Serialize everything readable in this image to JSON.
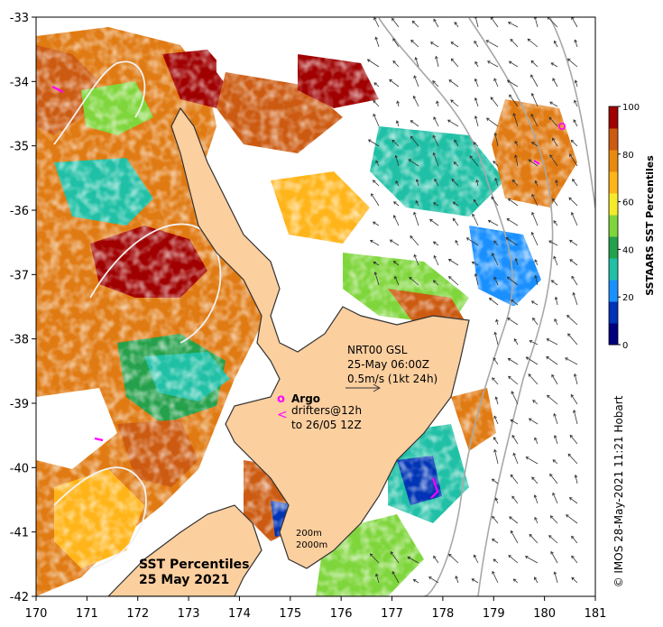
{
  "map": {
    "lon_ticks": [
      "170",
      "171",
      "172",
      "173",
      "174",
      "175",
      "176",
      "177",
      "178",
      "179",
      "180",
      "181"
    ],
    "lat_ticks": [
      "-33",
      "-34",
      "-35",
      "-36",
      "-37",
      "-38",
      "-39",
      "-40",
      "-41",
      "-42"
    ],
    "lon_range": [
      170,
      181
    ],
    "lat_range": [
      -42,
      -33
    ]
  },
  "title": {
    "line1": "SST Percentiles",
    "line2": "25 May 2021"
  },
  "currents": {
    "line1": "NRT00 GSL",
    "line2": "25-May 06:00Z",
    "line3": "0.5m/s (1kt 24h)"
  },
  "legend": {
    "argo_symbol": "o",
    "argo_label": "Argo",
    "drifter_symbol": "<",
    "drifters_line1": "drifters@12h",
    "drifters_line2": "to 26/05 12Z"
  },
  "isobaths": {
    "shallow": "200m",
    "deep": "2000m"
  },
  "colorbar": {
    "label": "SSTAARS SST Percentiles",
    "ticks": [
      "0",
      "20",
      "40",
      "60",
      "80",
      "100"
    ],
    "colors": [
      "#00007f",
      "#0033b5",
      "#1a90ff",
      "#20c0a6",
      "#25a04b",
      "#7fd63c",
      "#f5eb2a",
      "#ffb51a",
      "#e88a10",
      "#cc5a10",
      "#a00000"
    ]
  },
  "credit": "© IMOS 28-May-2021 11:21 Hobart",
  "palette": {
    "land": "#fccf9f",
    "coast": "#333333",
    "contour": "#a8a8a8",
    "argo": "#ff00ff"
  }
}
